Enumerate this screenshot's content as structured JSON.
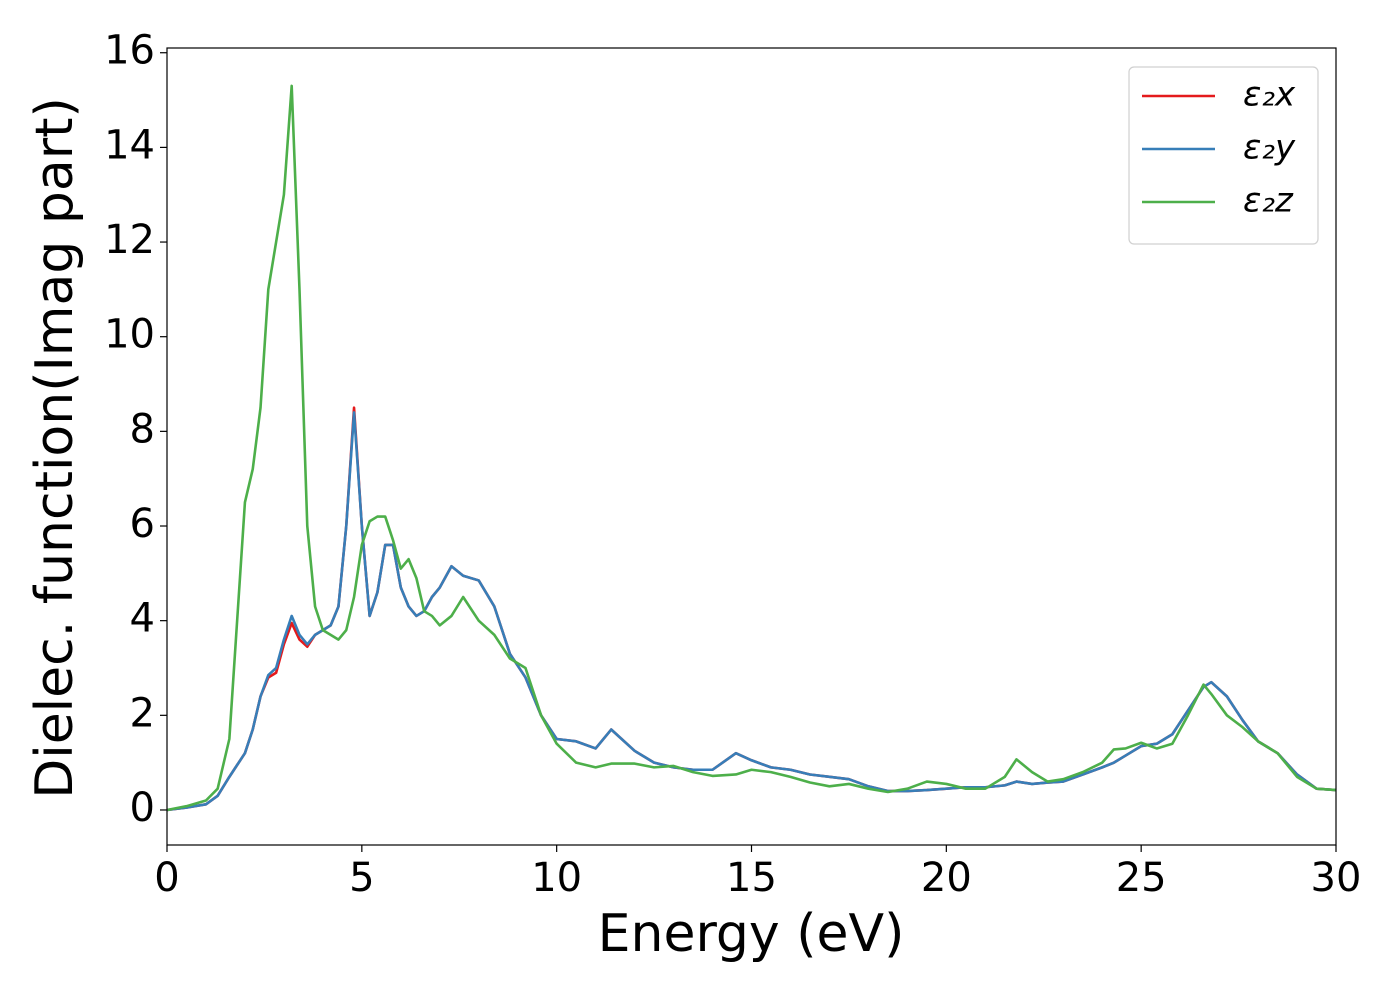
{
  "chart_data": {
    "type": "line",
    "xlabel": "Energy (eV)",
    "ylabel": "Dielec. function(Imag part)",
    "x": [
      0,
      0.5,
      1.0,
      1.3,
      1.6,
      1.8,
      2.0,
      2.2,
      2.4,
      2.6,
      2.8,
      3.0,
      3.2,
      3.4,
      3.6,
      3.8,
      4.0,
      4.2,
      4.4,
      4.6,
      4.8,
      5.0,
      5.2,
      5.4,
      5.6,
      5.8,
      6.0,
      6.2,
      6.4,
      6.6,
      6.8,
      7.0,
      7.3,
      7.6,
      8.0,
      8.4,
      8.8,
      9.2,
      9.6,
      10.0,
      10.5,
      11.0,
      11.4,
      12.0,
      12.5,
      13.0,
      13.5,
      14.0,
      14.6,
      15.0,
      15.5,
      16.0,
      16.5,
      17.0,
      17.5,
      18.0,
      18.5,
      19.0,
      19.5,
      20.0,
      20.5,
      21.0,
      21.5,
      21.8,
      22.2,
      22.6,
      23.0,
      23.5,
      24.0,
      24.3,
      24.6,
      25.0,
      25.4,
      25.8,
      26.2,
      26.6,
      26.8,
      27.2,
      27.6,
      28.0,
      28.5,
      29.0,
      29.5,
      30.0
    ],
    "series": [
      {
        "name": "ε₂x",
        "color": "#e41a1c",
        "values": [
          0,
          0.05,
          0.12,
          0.3,
          0.7,
          0.95,
          1.2,
          1.7,
          2.4,
          2.8,
          2.9,
          3.5,
          3.95,
          3.6,
          3.45,
          3.7,
          3.8,
          3.9,
          4.3,
          6.0,
          8.5,
          6.0,
          4.1,
          4.6,
          5.6,
          5.6,
          4.7,
          4.3,
          4.1,
          4.2,
          4.5,
          4.7,
          5.15,
          4.95,
          4.85,
          4.3,
          3.3,
          2.8,
          2.0,
          1.5,
          1.45,
          1.3,
          1.7,
          1.25,
          1.0,
          0.9,
          0.85,
          0.85,
          1.2,
          1.05,
          0.9,
          0.85,
          0.75,
          0.7,
          0.65,
          0.5,
          0.4,
          0.4,
          0.42,
          0.45,
          0.48,
          0.48,
          0.52,
          0.6,
          0.55,
          0.58,
          0.6,
          0.75,
          0.9,
          1.0,
          1.15,
          1.35,
          1.4,
          1.6,
          2.1,
          2.6,
          2.7,
          2.4,
          1.9,
          1.45,
          1.2,
          0.75,
          0.45,
          0.42
        ]
      },
      {
        "name": "ε₂y",
        "color": "#377eb8",
        "values": [
          0,
          0.05,
          0.12,
          0.3,
          0.7,
          0.95,
          1.2,
          1.7,
          2.4,
          2.85,
          3.0,
          3.6,
          4.1,
          3.7,
          3.5,
          3.7,
          3.8,
          3.9,
          4.3,
          6.0,
          8.4,
          6.0,
          4.1,
          4.6,
          5.6,
          5.6,
          4.7,
          4.3,
          4.1,
          4.2,
          4.5,
          4.7,
          5.15,
          4.95,
          4.85,
          4.3,
          3.3,
          2.8,
          2.0,
          1.5,
          1.45,
          1.3,
          1.7,
          1.25,
          1.0,
          0.9,
          0.85,
          0.85,
          1.2,
          1.05,
          0.9,
          0.85,
          0.75,
          0.7,
          0.65,
          0.5,
          0.4,
          0.4,
          0.42,
          0.45,
          0.48,
          0.48,
          0.52,
          0.6,
          0.55,
          0.58,
          0.6,
          0.75,
          0.9,
          1.0,
          1.15,
          1.35,
          1.4,
          1.6,
          2.1,
          2.6,
          2.7,
          2.4,
          1.9,
          1.45,
          1.2,
          0.75,
          0.45,
          0.42
        ]
      },
      {
        "name": "ε₂z",
        "color": "#4daf4a",
        "values": [
          0,
          0.08,
          0.2,
          0.45,
          1.5,
          4.0,
          6.5,
          7.2,
          8.5,
          11.0,
          12.0,
          13.0,
          15.3,
          11.0,
          6.0,
          4.3,
          3.8,
          3.7,
          3.6,
          3.8,
          4.5,
          5.6,
          6.1,
          6.2,
          6.2,
          5.7,
          5.1,
          5.3,
          4.9,
          4.2,
          4.1,
          3.9,
          4.1,
          4.5,
          4.0,
          3.7,
          3.2,
          3.0,
          2.0,
          1.4,
          1.0,
          0.9,
          0.98,
          0.98,
          0.9,
          0.93,
          0.8,
          0.72,
          0.75,
          0.85,
          0.8,
          0.7,
          0.58,
          0.5,
          0.55,
          0.45,
          0.38,
          0.45,
          0.6,
          0.55,
          0.45,
          0.45,
          0.7,
          1.07,
          0.8,
          0.6,
          0.65,
          0.8,
          1.0,
          1.28,
          1.3,
          1.42,
          1.3,
          1.4,
          2.0,
          2.65,
          2.45,
          2.0,
          1.75,
          1.45,
          1.2,
          0.7,
          0.45,
          0.42
        ]
      }
    ],
    "xlim": [
      0,
      30
    ],
    "xticks": [
      0,
      5,
      10,
      15,
      20,
      25,
      30
    ],
    "ylim": [
      -0.74,
      16.1
    ],
    "yticks": [
      0,
      2,
      4,
      6,
      8,
      10,
      12,
      14,
      16
    ],
    "legend": "upper right"
  }
}
